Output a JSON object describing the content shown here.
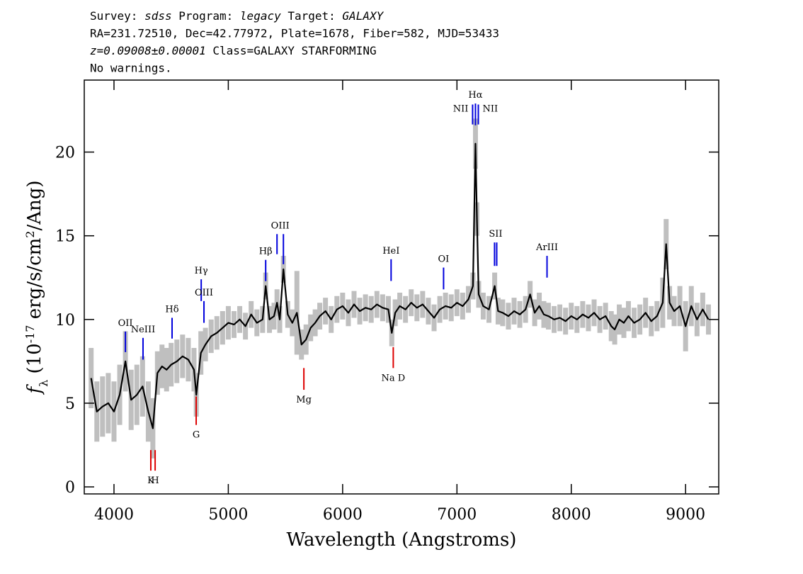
{
  "chart_data": {
    "type": "spectrum",
    "header": [
      [
        {
          "text": "Survey: "
        },
        {
          "text": "sdss",
          "italic": true
        },
        {
          "text": " Program: "
        },
        {
          "text": "legacy",
          "italic": true
        },
        {
          "text": " Target: "
        },
        {
          "text": "GALAXY",
          "italic": true
        }
      ],
      [
        {
          "text": "RA=231.72510, Dec=42.77972, Plate=1678, Fiber=582, MJD=53433"
        }
      ],
      [
        {
          "text": "z=0.09008±0.00001",
          "italic": true
        },
        {
          "text": " Class=GALAXY STARFORMING"
        }
      ],
      [
        {
          "text": "No warnings."
        }
      ]
    ],
    "xlabel": "Wavelength (Angstroms)",
    "ylabel": [
      {
        "text": "f",
        "italic": true
      },
      {
        "text": "λ",
        "sub": true
      },
      {
        "text": " (10"
      },
      {
        "text": "-17",
        "sup": true
      },
      {
        "text": " erg/s/cm"
      },
      {
        "text": "2",
        "sup": true
      },
      {
        "text": "/Ang)"
      }
    ],
    "xlim": [
      3740,
      9290
    ],
    "ylim": [
      -0.42,
      24.3
    ],
    "xticks": [
      4000,
      5000,
      6000,
      7000,
      8000,
      9000
    ],
    "yticks": [
      0,
      5,
      10,
      15,
      20
    ],
    "color": "#000000",
    "error_color": "#bfbfbf",
    "x": [
      3800,
      3850,
      3900,
      3950,
      4000,
      4050,
      4100,
      4150,
      4200,
      4250,
      4300,
      4340,
      4380,
      4420,
      4460,
      4500,
      4550,
      4600,
      4650,
      4700,
      4720,
      4760,
      4800,
      4850,
      4900,
      4950,
      5000,
      5050,
      5100,
      5150,
      5200,
      5250,
      5300,
      5327,
      5360,
      5400,
      5426,
      5450,
      5482,
      5520,
      5560,
      5600,
      5640,
      5680,
      5720,
      5760,
      5800,
      5850,
      5900,
      5950,
      6000,
      6050,
      6100,
      6150,
      6200,
      6250,
      6300,
      6350,
      6400,
      6430,
      6460,
      6500,
      6550,
      6600,
      6650,
      6700,
      6750,
      6800,
      6850,
      6900,
      6950,
      7000,
      7050,
      7100,
      7140,
      7162,
      7175,
      7190,
      7230,
      7280,
      7330,
      7360,
      7400,
      7450,
      7500,
      7550,
      7600,
      7640,
      7680,
      7720,
      7760,
      7800,
      7850,
      7900,
      7950,
      8000,
      8050,
      8100,
      8150,
      8200,
      8250,
      8300,
      8350,
      8380,
      8420,
      8460,
      8500,
      8550,
      8600,
      8650,
      8700,
      8750,
      8800,
      8830,
      8860,
      8900,
      8950,
      9000,
      9050,
      9100,
      9150,
      9200
    ],
    "values": [
      6.5,
      4.5,
      4.8,
      5.0,
      4.5,
      5.5,
      7.5,
      5.2,
      5.5,
      6.0,
      4.5,
      3.5,
      6.8,
      7.2,
      7.0,
      7.3,
      7.5,
      7.8,
      7.6,
      7.0,
      5.5,
      8.0,
      8.5,
      9.0,
      9.2,
      9.5,
      9.8,
      9.7,
      10.0,
      9.6,
      10.3,
      9.8,
      10.0,
      12.0,
      10.0,
      10.2,
      11.0,
      10.0,
      13.0,
      10.3,
      9.8,
      10.4,
      8.5,
      8.8,
      9.5,
      9.8,
      10.2,
      10.5,
      10.0,
      10.6,
      10.8,
      10.4,
      10.9,
      10.5,
      10.7,
      10.6,
      10.9,
      10.7,
      10.6,
      9.2,
      10.4,
      10.8,
      10.6,
      11.0,
      10.7,
      10.9,
      10.5,
      10.1,
      10.6,
      10.8,
      10.7,
      11.0,
      10.8,
      11.2,
      12.0,
      20.5,
      16.0,
      11.5,
      10.8,
      10.6,
      12.0,
      10.5,
      10.4,
      10.2,
      10.5,
      10.3,
      10.6,
      11.5,
      10.4,
      10.8,
      10.3,
      10.2,
      10.0,
      10.1,
      9.9,
      10.2,
      10.0,
      10.3,
      10.1,
      10.4,
      10.0,
      10.2,
      9.6,
      9.4,
      10.0,
      9.8,
      10.2,
      9.8,
      10.0,
      10.4,
      9.9,
      10.2,
      11.0,
      14.5,
      11.0,
      10.5,
      10.8,
      9.6,
      10.8,
      10.0,
      10.6,
      10.0
    ],
    "errors": [
      1.8,
      1.8,
      1.8,
      1.8,
      1.8,
      1.8,
      1.8,
      1.8,
      1.8,
      1.8,
      1.8,
      1.8,
      1.3,
      1.3,
      1.3,
      1.3,
      1.3,
      1.3,
      1.3,
      1.3,
      1.3,
      1.3,
      1.0,
      1.0,
      1.0,
      1.0,
      1.0,
      0.8,
      0.8,
      0.8,
      0.8,
      0.8,
      0.8,
      0.8,
      0.8,
      0.8,
      0.8,
      0.8,
      0.8,
      0.8,
      0.8,
      2.5,
      0.9,
      0.9,
      0.8,
      0.8,
      0.8,
      0.8,
      0.8,
      0.8,
      0.8,
      0.8,
      0.8,
      0.8,
      0.8,
      0.8,
      0.8,
      0.8,
      0.8,
      0.8,
      0.8,
      0.8,
      0.8,
      0.8,
      0.8,
      0.8,
      0.8,
      0.8,
      0.8,
      0.8,
      0.8,
      0.8,
      0.8,
      0.8,
      0.8,
      1.5,
      1.0,
      0.8,
      0.8,
      0.8,
      0.8,
      0.8,
      0.8,
      0.8,
      0.8,
      0.8,
      0.8,
      0.8,
      0.8,
      0.8,
      0.8,
      0.8,
      0.8,
      0.8,
      0.8,
      0.8,
      0.8,
      0.8,
      0.8,
      0.8,
      0.8,
      0.8,
      0.9,
      0.9,
      0.9,
      0.9,
      0.9,
      0.9,
      0.9,
      0.9,
      0.9,
      0.9,
      1.5,
      1.5,
      1.0,
      0.9,
      1.2,
      1.5,
      1.2,
      1.0,
      1.0,
      0.9
    ],
    "annotations": [
      {
        "label": "OII",
        "side": "above",
        "color": "#0000dd",
        "ticks": [
          {
            "x": 4100,
            "y": [
              8.05,
              9.28
            ]
          }
        ]
      },
      {
        "label": "NeIII",
        "side": "above",
        "color": "#0000dd",
        "ticks": [
          {
            "x": 4254,
            "y": [
              7.6,
              8.9
            ]
          }
        ]
      },
      {
        "label": "Hδ",
        "side": "above",
        "color": "#0000dd",
        "ticks": [
          {
            "x": 4508,
            "y": [
              8.86,
              10.1
            ]
          }
        ]
      },
      {
        "label": "Hγ",
        "side": "above",
        "color": "#0000dd",
        "ticks": [
          {
            "x": 4763,
            "y": [
              11.1,
              12.4
            ]
          }
        ]
      },
      {
        "label": "OIII",
        "side": "above",
        "color": "#0000dd",
        "ticks": [
          {
            "x": 4787,
            "y": [
              9.8,
              11.1
            ]
          }
        ]
      },
      {
        "label": "Hβ",
        "side": "above",
        "color": "#0000dd",
        "ticks": [
          {
            "x": 5327,
            "y": [
              12.29,
              13.56
            ]
          }
        ]
      },
      {
        "label": "OIII",
        "side": "above",
        "color": "#0000dd",
        "ticks": [
          {
            "x": 5426,
            "y": [
              13.9,
              15.1
            ]
          },
          {
            "x": 5482,
            "y": [
              13.3,
              15.1
            ]
          }
        ]
      },
      {
        "label": "HeI",
        "side": "above",
        "color": "#0000dd",
        "ticks": [
          {
            "x": 6424,
            "y": [
              12.3,
              13.6
            ]
          }
        ]
      },
      {
        "label": "OI",
        "side": "above",
        "color": "#0000dd",
        "ticks": [
          {
            "x": 6883,
            "y": [
              11.8,
              13.1
            ]
          }
        ]
      },
      {
        "label": "NII",
        "side": "left",
        "color": "#0000dd",
        "ticks": [
          {
            "x": 7137,
            "y": [
              21.65,
              22.84
            ]
          }
        ]
      },
      {
        "label": "Hα",
        "side": "above",
        "color": "#0000dd",
        "ticks": [
          {
            "x": 7162,
            "y": [
              21.6,
              22.9
            ]
          }
        ]
      },
      {
        "label": "NII",
        "side": "right",
        "color": "#0000dd",
        "ticks": [
          {
            "x": 7187,
            "y": [
              21.65,
              22.84
            ]
          }
        ]
      },
      {
        "label": "SII",
        "side": "above",
        "color": "#0000dd",
        "ticks": [
          {
            "x": 7329,
            "y": [
              13.2,
              14.6
            ]
          },
          {
            "x": 7348,
            "y": [
              13.2,
              14.6
            ]
          }
        ]
      },
      {
        "label": "ArIII",
        "side": "above",
        "color": "#0000dd",
        "ticks": [
          {
            "x": 7788,
            "y": [
              12.5,
              13.8
            ]
          }
        ]
      },
      {
        "label": "K",
        "side": "below",
        "color": "#dd0000",
        "ticks": [
          {
            "x": 4322,
            "y": [
              0.97,
              2.2
            ]
          }
        ]
      },
      {
        "label": "H",
        "side": "below",
        "color": "#dd0000",
        "ticks": [
          {
            "x": 4360,
            "y": [
              0.97,
              2.2
            ]
          }
        ]
      },
      {
        "label": "G",
        "side": "below",
        "color": "#dd0000",
        "ticks": [
          {
            "x": 4719,
            "y": [
              3.7,
              5.4
            ]
          }
        ]
      },
      {
        "label": "Mg",
        "side": "below",
        "color": "#dd0000",
        "ticks": [
          {
            "x": 5661,
            "y": [
              5.8,
              7.1
            ]
          }
        ]
      },
      {
        "label": "Na D",
        "side": "below",
        "color": "#dd0000",
        "ticks": [
          {
            "x": 6443,
            "y": [
              7.1,
              8.35
            ]
          }
        ]
      }
    ]
  }
}
